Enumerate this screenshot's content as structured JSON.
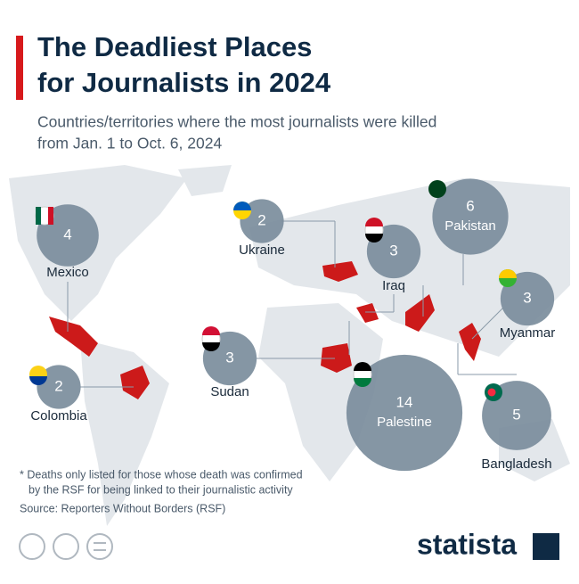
{
  "header": {
    "title_line1": "The Deadliest Places",
    "title_line2": "for Journalists in 2024",
    "subtitle_line1": "Countries/territories where the most journalists were killed",
    "subtitle_line2": "from Jan. 1 to Oct. 6, 2024"
  },
  "map": {
    "places": [
      {
        "name": "Mexico",
        "value": 4
      },
      {
        "name": "Ukraine",
        "value": 2
      },
      {
        "name": "Iraq",
        "value": 3
      },
      {
        "name": "Pakistan",
        "value": 6
      },
      {
        "name": "Myanmar",
        "value": 3
      },
      {
        "name": "Sudan",
        "value": 3
      },
      {
        "name": "Colombia",
        "value": 2
      },
      {
        "name": "Palestine",
        "value": 14
      },
      {
        "name": "Bangladesh",
        "value": 5
      }
    ]
  },
  "footer": {
    "note_line1": "* Deaths only listed for those whose death was confirmed",
    "note_line2": "by the RSF for being linked to their journalistic activity",
    "source": "Source: Reporters Without Borders (RSF)",
    "brand": "statista"
  }
}
